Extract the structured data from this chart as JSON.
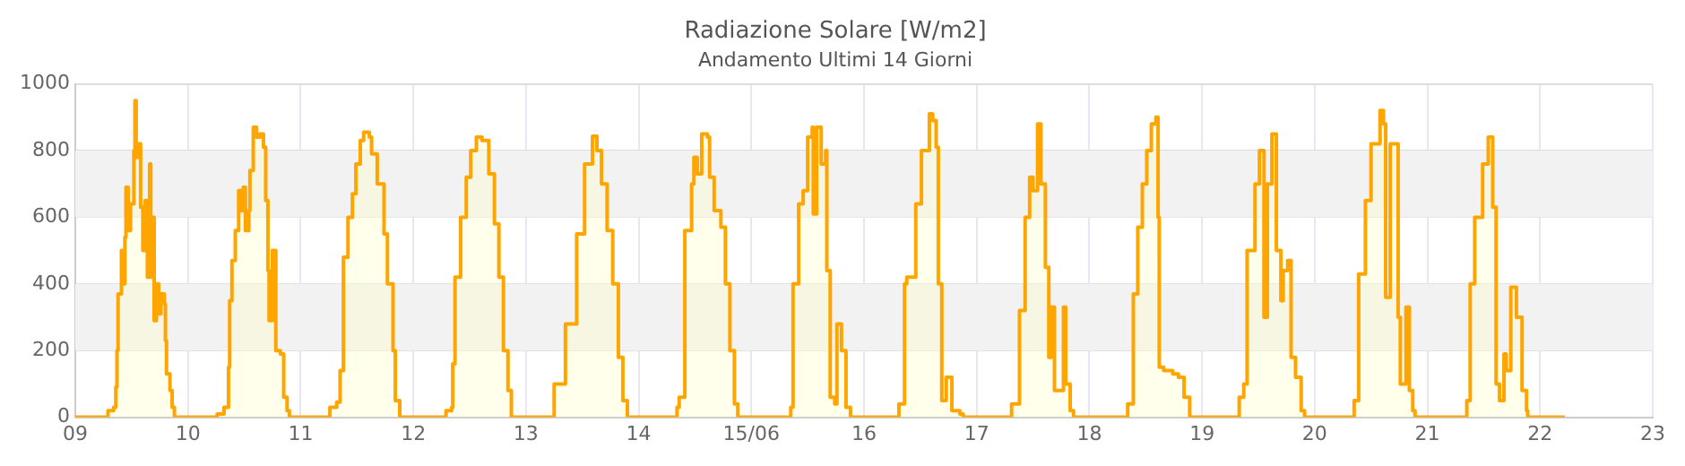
{
  "chart_data": {
    "type": "step",
    "title": "Radiazione Solare [W/m2]",
    "subtitle": "Andamento Ultimi 14 Giorni",
    "xlim": [
      "--06-09",
      "--06-23"
    ],
    "xticks": [
      {
        "value": "--06-09",
        "label": "09"
      },
      {
        "value": "--06-10",
        "label": "10"
      },
      {
        "value": "--06-11",
        "label": "11"
      },
      {
        "value": "--06-12",
        "label": "12"
      },
      {
        "value": "--06-13",
        "label": "13"
      },
      {
        "value": "--06-14",
        "label": "14"
      },
      {
        "value": "--06-15",
        "label": "15/06"
      },
      {
        "value": "--06-16",
        "label": "16"
      },
      {
        "value": "--06-17",
        "label": "17"
      },
      {
        "value": "--06-18",
        "label": "18"
      },
      {
        "value": "--06-19",
        "label": "19"
      },
      {
        "value": "--06-20",
        "label": "20"
      },
      {
        "value": "--06-21",
        "label": "21"
      },
      {
        "value": "--06-22",
        "label": "22"
      },
      {
        "value": "--06-23",
        "label": "23"
      }
    ],
    "ylim": [
      0,
      1000
    ],
    "yticks": [
      0,
      200,
      400,
      600,
      800,
      1000
    ],
    "grid": true,
    "legend": false,
    "bands": [
      {
        "axis": "y",
        "from": 200,
        "to": 400,
        "color": "#f2f2f2"
      },
      {
        "axis": "y",
        "from": 600,
        "to": 800,
        "color": "#f2f2f2"
      }
    ],
    "series": [
      {
        "color": "#ffa500",
        "x": [
          "--06-09T00:00",
          "--06-09T05:31",
          "--06-09T06:58",
          "--06-09T08:10",
          "--06-09T08:38",
          "--06-09T08:53",
          "--06-09T09:07",
          "--06-09T09:50",
          "--06-09T10:05",
          "--06-09T10:34",
          "--06-09T10:48",
          "--06-09T11:17",
          "--06-09T11:46",
          "--06-09T12:29",
          "--06-09T12:43",
          "--06-09T12:58",
          "--06-09T13:26",
          "--06-09T13:55",
          "--06-09T14:24",
          "--06-09T14:53",
          "--06-09T15:22",
          "--06-09T15:50",
          "--06-09T16:05",
          "--06-09T16:34",
          "--06-09T16:48",
          "--06-09T17:17",
          "--06-09T17:46",
          "--06-09T18:14",
          "--06-09T18:58",
          "--06-09T19:12",
          "--06-09T19:26",
          "--06-09T20:10",
          "--06-09T20:38",
          "--06-09T21:07",
          "--06-10T04:19",
          "--06-10T06:14",
          "--06-10T07:41",
          "--06-10T08:38",
          "--06-10T08:53",
          "--06-10T09:22",
          "--06-10T10:05",
          "--06-10T10:48",
          "--06-10T11:17",
          "--06-10T11:46",
          "--06-10T12:14",
          "--06-10T12:58",
          "--06-10T13:12",
          "--06-10T13:55",
          "--06-10T14:38",
          "--06-10T15:22",
          "--06-10T16:05",
          "--06-10T16:34",
          "--06-10T17:02",
          "--06-10T17:17",
          "--06-10T18:00",
          "--06-10T18:43",
          "--06-10T19:41",
          "--06-10T20:24",
          "--06-10T21:07",
          "--06-10T21:36",
          "--06-11T04:19",
          "--06-11T06:14",
          "--06-11T07:41",
          "--06-11T08:24",
          "--06-11T09:07",
          "--06-11T10:05",
          "--06-11T11:02",
          "--06-11T11:46",
          "--06-11T12:43",
          "--06-11T13:26",
          "--06-11T14:38",
          "--06-11T15:07",
          "--06-11T16:19",
          "--06-11T17:46",
          "--06-11T18:29",
          "--06-11T19:41",
          "--06-11T20:10",
          "--06-11T21:07",
          "--06-12T05:02",
          "--06-12T06:58",
          "--06-12T08:10",
          "--06-12T08:24",
          "--06-12T08:53",
          "--06-12T10:05",
          "--06-12T11:17",
          "--06-12T12:14",
          "--06-12T13:26",
          "--06-12T14:38",
          "--06-12T16:05",
          "--06-12T17:17",
          "--06-12T18:14",
          "--06-12T19:12",
          "--06-12T20:10",
          "--06-12T20:53",
          "--06-13T03:36",
          "--06-13T06:00",
          "--06-13T08:24",
          "--06-13T10:48",
          "--06-13T12:29",
          "--06-13T14:10",
          "--06-13T15:07",
          "--06-13T16:05",
          "--06-13T17:17",
          "--06-13T18:29",
          "--06-13T19:41",
          "--06-13T20:38",
          "--06-13T21:36",
          "--06-14T05:31",
          "--06-14T08:10",
          "--06-14T08:38",
          "--06-14T09:50",
          "--06-14T11:17",
          "--06-14T11:46",
          "--06-14T12:29",
          "--06-14T13:26",
          "--06-14T14:38",
          "--06-14T15:07",
          "--06-14T16:05",
          "--06-14T17:31",
          "--06-14T18:29",
          "--06-14T19:26",
          "--06-14T20:24",
          "--06-14T21:07",
          "--06-15T05:17",
          "--06-15T08:24",
          "--06-15T08:53",
          "--06-15T10:05",
          "--06-15T11:02",
          "--06-15T12:00",
          "--06-15T12:58",
          "--06-15T13:12",
          "--06-15T13:55",
          "--06-15T14:53",
          "--06-15T15:50",
          "--06-15T16:05",
          "--06-15T16:48",
          "--06-15T17:46",
          "--06-15T18:14",
          "--06-15T19:12",
          "--06-15T20:10",
          "--06-15T21:07",
          "--06-16T05:02",
          "--06-16T07:26",
          "--06-16T08:38",
          "--06-16T09:07",
          "--06-16T11:02",
          "--06-16T12:14",
          "--06-16T13:55",
          "--06-16T14:38",
          "--06-16T15:22",
          "--06-16T15:50",
          "--06-16T16:34",
          "--06-16T17:31",
          "--06-16T18:43",
          "--06-16T20:24",
          "--06-16T21:07",
          "--06-17T05:02",
          "--06-17T07:26",
          "--06-17T09:07",
          "--06-17T10:19",
          "--06-17T11:17",
          "--06-17T12:00",
          "--06-17T12:58",
          "--06-17T13:41",
          "--06-17T14:38",
          "--06-17T15:22",
          "--06-17T15:50",
          "--06-17T16:34",
          "--06-17T18:29",
          "--06-17T18:58",
          "--06-17T19:55",
          "--06-17T20:38",
          "--06-18T05:46",
          "--06-18T08:10",
          "--06-18T09:22",
          "--06-18T10:19",
          "--06-18T11:17",
          "--06-18T12:14",
          "--06-18T13:12",
          "--06-18T14:10",
          "--06-18T14:38",
          "--06-18T14:53",
          "--06-18T15:50",
          "--06-18T17:46",
          "--06-18T18:58",
          "--06-18T20:10",
          "--06-18T21:22",
          "--06-19T05:31",
          "--06-19T07:55",
          "--06-19T08:53",
          "--06-19T09:36",
          "--06-19T11:17",
          "--06-19T12:14",
          "--06-19T13:12",
          "--06-19T13:55",
          "--06-19T14:53",
          "--06-19T15:50",
          "--06-19T16:48",
          "--06-19T17:17",
          "--06-19T18:14",
          "--06-19T18:58",
          "--06-19T19:55",
          "--06-19T21:07",
          "--06-19T21:50",
          "--06-20T06:00",
          "--06-20T08:24",
          "--06-20T09:22",
          "--06-20T10:48",
          "--06-20T12:00",
          "--06-20T13:55",
          "--06-20T14:38",
          "--06-20T15:07",
          "--06-20T16:05",
          "--06-20T17:46",
          "--06-20T18:14",
          "--06-20T19:26",
          "--06-20T20:10",
          "--06-20T20:53",
          "--06-20T21:22",
          "--06-21T05:46",
          "--06-21T08:24",
          "--06-21T09:07",
          "--06-21T10:05",
          "--06-21T11:46",
          "--06-21T12:58",
          "--06-21T13:55",
          "--06-21T14:38",
          "--06-21T15:22",
          "--06-21T16:19",
          "--06-21T16:48",
          "--06-21T17:46",
          "--06-21T18:58",
          "--06-21T20:10",
          "--06-21T21:07",
          "--06-21T21:22",
          "--06-22T05:17"
        ],
        "values": [
          0,
          0,
          20,
          30,
          90,
          200,
          370,
          500,
          400,
          540,
          690,
          560,
          640,
          800,
          950,
          780,
          820,
          630,
          500,
          650,
          420,
          760,
          420,
          600,
          290,
          400,
          310,
          370,
          340,
          230,
          130,
          80,
          30,
          0,
          0,
          10,
          30,
          150,
          350,
          470,
          560,
          680,
          620,
          690,
          560,
          620,
          740,
          870,
          840,
          850,
          810,
          650,
          440,
          290,
          500,
          200,
          190,
          60,
          20,
          0,
          0,
          30,
          45,
          140,
          480,
          600,
          670,
          760,
          830,
          855,
          840,
          790,
          700,
          550,
          400,
          200,
          50,
          0,
          0,
          20,
          30,
          160,
          420,
          600,
          720,
          800,
          840,
          830,
          730,
          580,
          420,
          200,
          80,
          0,
          0,
          100,
          280,
          550,
          760,
          843,
          800,
          700,
          560,
          400,
          180,
          50,
          0,
          0,
          30,
          60,
          560,
          700,
          780,
          730,
          850,
          840,
          720,
          620,
          570,
          400,
          200,
          40,
          0,
          0,
          30,
          400,
          640,
          680,
          840,
          870,
          610,
          870,
          760,
          800,
          440,
          60,
          40,
          280,
          200,
          30,
          0,
          0,
          40,
          400,
          420,
          640,
          800,
          910,
          890,
          810,
          400,
          50,
          120,
          20,
          10,
          0,
          0,
          40,
          320,
          600,
          720,
          680,
          880,
          700,
          450,
          180,
          330,
          80,
          330,
          100,
          20,
          0,
          0,
          40,
          370,
          570,
          700,
          800,
          880,
          900,
          600,
          150,
          140,
          130,
          120,
          60,
          0,
          0,
          60,
          100,
          500,
          700,
          800,
          300,
          700,
          850,
          500,
          350,
          440,
          470,
          180,
          120,
          20,
          0,
          0,
          50,
          430,
          650,
          820,
          920,
          880,
          360,
          820,
          300,
          100,
          330,
          80,
          20,
          0,
          0,
          50,
          400,
          600,
          760,
          840,
          630,
          100,
          50,
          190,
          140,
          390,
          300,
          80,
          20,
          0,
          0
        ]
      }
    ]
  }
}
